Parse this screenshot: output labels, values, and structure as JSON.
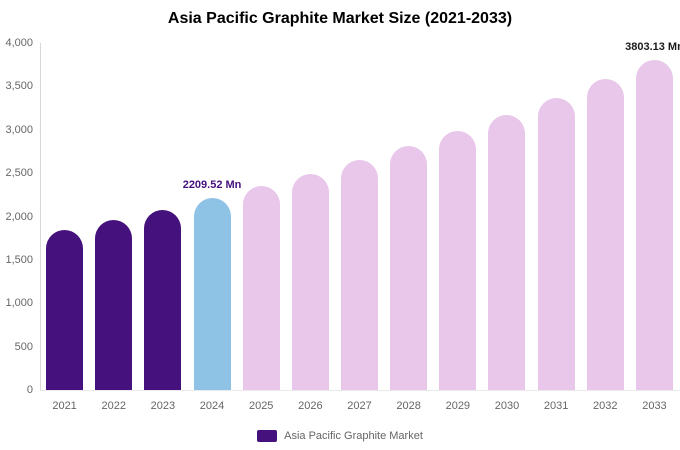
{
  "chart_data": {
    "type": "bar",
    "title": "Asia Pacific Graphite Market Size (2021-2033)",
    "categories": [
      "2021",
      "2022",
      "2023",
      "2024",
      "2025",
      "2026",
      "2027",
      "2028",
      "2029",
      "2030",
      "2031",
      "2032",
      "2033"
    ],
    "values": [
      1850,
      1960,
      2080,
      2209.52,
      2350,
      2490,
      2650,
      2810,
      2990,
      3170,
      3370,
      3580,
      3803.13
    ],
    "unit": "Mn",
    "ylim": [
      0,
      4000
    ],
    "ytick_step": 500,
    "yticks": [
      "0",
      "500",
      "1,000",
      "1,500",
      "2,000",
      "2,500",
      "3,000",
      "3,500",
      "4,000"
    ],
    "grid": false,
    "legend_position": "bottom",
    "legend": [
      {
        "label": "Asia Pacific Graphite Market",
        "color": "#45117d"
      }
    ],
    "roles": [
      "historical",
      "historical",
      "historical",
      "current",
      "forecast",
      "forecast",
      "forecast",
      "forecast",
      "forecast",
      "forecast",
      "forecast",
      "forecast",
      "forecast"
    ],
    "colors": {
      "historical": "#45117d",
      "current": "#8fc3e6",
      "forecast": "#e8c7ea"
    },
    "data_labels": {
      "2024": {
        "text": "2209.52 Mn",
        "color": "#45117d"
      },
      "2033": {
        "text": "3803.13 Mn",
        "color": "#1a1a1a"
      }
    }
  }
}
